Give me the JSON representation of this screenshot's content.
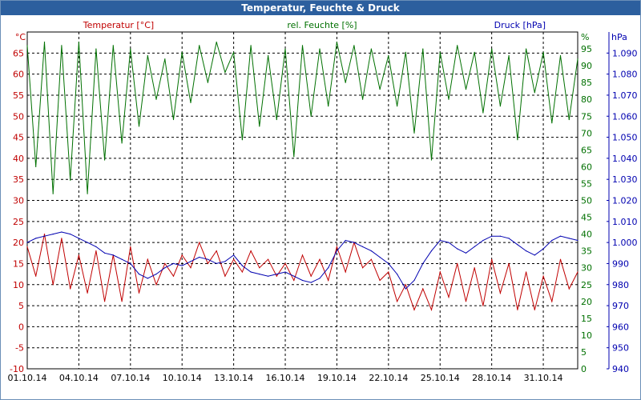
{
  "window": {
    "title": "Temperatur, Feuchte & Druck"
  },
  "colors": {
    "temp": "#c00000",
    "hum": "#007000",
    "press": "#0000b0",
    "title_bg": "#2c5f9e",
    "grid": "#000000"
  },
  "chart_data": {
    "type": "line",
    "title": "Temperatur, Feuchte & Druck",
    "x_labels": [
      "01.10.14",
      "04.10.14",
      "07.10.14",
      "10.10.14",
      "13.10.14",
      "16.10.14",
      "19.10.14",
      "22.10.14",
      "25.10.14",
      "28.10.14",
      "31.10.14"
    ],
    "x_day_range": [
      0,
      32
    ],
    "axes": {
      "temp": {
        "label": "Temperatur [°C]",
        "unit": "°C",
        "min": -10,
        "max": 70,
        "ticks": [
          "-10",
          "-5",
          "0",
          "5",
          "10",
          "15",
          "20",
          "25",
          "30",
          "35",
          "40",
          "45",
          "50",
          "55",
          "60",
          "65"
        ]
      },
      "hum": {
        "label": "rel. Feuchte [%]",
        "unit": "%",
        "min": 0,
        "max": 100,
        "ticks": [
          "0",
          "5",
          "10",
          "15",
          "20",
          "25",
          "30",
          "35",
          "40",
          "45",
          "50",
          "55",
          "60",
          "65",
          "70",
          "75",
          "80",
          "85",
          "90",
          "95"
        ]
      },
      "press": {
        "label": "Druck [hPa]",
        "unit": "hPa",
        "min": 940,
        "max": 1100,
        "ticks": [
          "940",
          "950",
          "960",
          "970",
          "980",
          "990",
          "1.000",
          "1.010",
          "1.020",
          "1.030",
          "1.040",
          "1.050",
          "1.060",
          "1.070",
          "1.080",
          "1.090"
        ]
      }
    },
    "series": [
      {
        "name": "Temperatur [°C]",
        "axis": "temp",
        "color": "#c00000",
        "x": [
          0,
          0.5,
          1,
          1.5,
          2,
          2.5,
          3,
          3.5,
          4,
          4.5,
          5,
          5.5,
          6,
          6.5,
          7,
          7.5,
          8,
          8.5,
          9,
          9.5,
          10,
          10.5,
          11,
          11.5,
          12,
          12.5,
          13,
          13.5,
          14,
          14.5,
          15,
          15.5,
          16,
          16.5,
          17,
          17.5,
          18,
          18.5,
          19,
          19.5,
          20,
          20.5,
          21,
          21.5,
          22,
          22.5,
          23,
          23.5,
          24,
          24.5,
          25,
          25.5,
          26,
          26.5,
          27,
          27.5,
          28,
          28.5,
          29,
          29.5,
          30,
          30.5,
          31,
          31.5,
          32
        ],
        "values": [
          19,
          12,
          22,
          10,
          21,
          9,
          17,
          8,
          18,
          6,
          17,
          6,
          19,
          8,
          16,
          10,
          15,
          12,
          17,
          14,
          20,
          15,
          18,
          12,
          16,
          13,
          18,
          14,
          16,
          12,
          15,
          11,
          17,
          12,
          16,
          11,
          19,
          13,
          20,
          14,
          16,
          11,
          13,
          6,
          10,
          4,
          9,
          4,
          13,
          7,
          15,
          6,
          14,
          5,
          16,
          8,
          15,
          4,
          13,
          4,
          12,
          6,
          16,
          9,
          13
        ]
      },
      {
        "name": "rel. Feuchte [%]",
        "axis": "hum",
        "color": "#007000",
        "x": [
          0,
          0.5,
          1,
          1.5,
          2,
          2.5,
          3,
          3.5,
          4,
          4.5,
          5,
          5.5,
          6,
          6.5,
          7,
          7.5,
          8,
          8.5,
          9,
          9.5,
          10,
          10.5,
          11,
          11.5,
          12,
          12.5,
          13,
          13.5,
          14,
          14.5,
          15,
          15.5,
          16,
          16.5,
          17,
          17.5,
          18,
          18.5,
          19,
          19.5,
          20,
          20.5,
          21,
          21.5,
          22,
          22.5,
          23,
          23.5,
          24,
          24.5,
          25,
          25.5,
          26,
          26.5,
          27,
          27.5,
          28,
          28.5,
          29,
          29.5,
          30,
          30.5,
          31,
          31.5,
          32
        ],
        "values": [
          96,
          60,
          97,
          52,
          96,
          56,
          97,
          52,
          95,
          62,
          96,
          67,
          95,
          72,
          93,
          80,
          92,
          74,
          94,
          79,
          96,
          85,
          97,
          88,
          94,
          68,
          96,
          72,
          93,
          74,
          95,
          63,
          96,
          75,
          95,
          78,
          97,
          85,
          96,
          80,
          95,
          83,
          93,
          78,
          94,
          70,
          95,
          62,
          94,
          80,
          96,
          83,
          94,
          76,
          95,
          78,
          93,
          68,
          95,
          82,
          94,
          73,
          93,
          74,
          92
        ]
      },
      {
        "name": "Druck [hPa]",
        "axis": "press",
        "color": "#0000b0",
        "x": [
          0,
          0.5,
          1,
          1.5,
          2,
          2.5,
          3,
          3.5,
          4,
          4.5,
          5,
          5.5,
          6,
          6.5,
          7,
          7.5,
          8,
          8.5,
          9,
          9.5,
          10,
          10.5,
          11,
          11.5,
          12,
          12.5,
          13,
          13.5,
          14,
          14.5,
          15,
          15.5,
          16,
          16.5,
          17,
          17.5,
          18,
          18.5,
          19,
          19.5,
          20,
          20.5,
          21,
          21.5,
          22,
          22.5,
          23,
          23.5,
          24,
          24.5,
          25,
          25.5,
          26,
          26.5,
          27,
          27.5,
          28,
          28.5,
          29,
          29.5,
          30,
          30.5,
          31,
          31.5,
          32
        ],
        "values": [
          1000,
          1002,
          1003,
          1004,
          1005,
          1004,
          1002,
          1000,
          998,
          995,
          994,
          992,
          990,
          985,
          983,
          985,
          988,
          990,
          989,
          991,
          993,
          992,
          990,
          991,
          994,
          989,
          986,
          985,
          984,
          985,
          986,
          984,
          982,
          981,
          983,
          988,
          996,
          1001,
          1000,
          998,
          996,
          993,
          990,
          985,
          978,
          982,
          990,
          996,
          1001,
          1000,
          997,
          995,
          998,
          1001,
          1003,
          1003,
          1002,
          999,
          996,
          994,
          997,
          1001,
          1003,
          1002,
          1001
        ]
      }
    ]
  }
}
